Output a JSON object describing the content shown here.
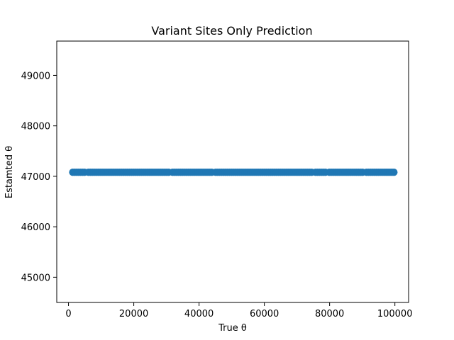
{
  "chart_data": {
    "type": "scatter",
    "title": "Variant Sites Only Prediction",
    "xlabel": "True θ",
    "ylabel": "Estamted θ",
    "xlim": [
      -3600,
      104200
    ],
    "ylim": [
      44500,
      49680
    ],
    "xticks": [
      0,
      20000,
      40000,
      60000,
      80000,
      100000
    ],
    "yticks": [
      45000,
      46000,
      47000,
      48000,
      49000
    ],
    "grid": false,
    "marker_color": "#1f77b4",
    "series": [
      {
        "y_constant": 47080,
        "x_range": [
          1300,
          99800
        ],
        "x_step": 600,
        "gaps": [
          [
            5200,
            6000
          ],
          [
            30800,
            31600
          ],
          [
            44200,
            44900
          ],
          [
            74600,
            75400
          ],
          [
            79000,
            79700
          ],
          [
            90400,
            91100
          ]
        ]
      }
    ]
  }
}
